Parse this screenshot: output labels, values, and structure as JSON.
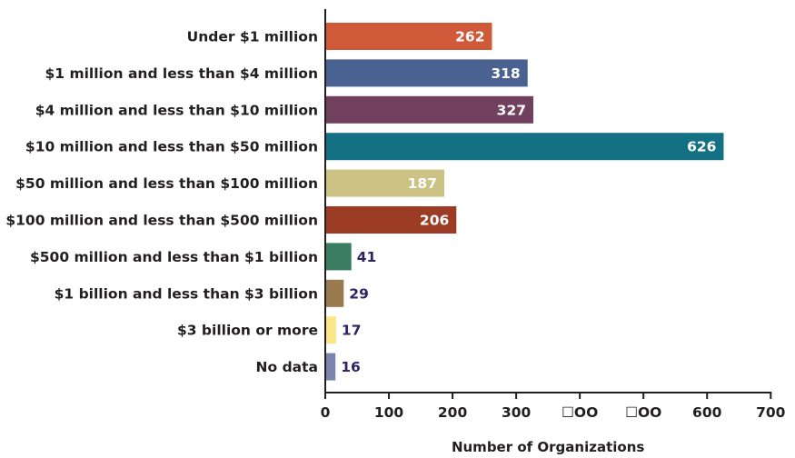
{
  "chart_data": {
    "type": "bar",
    "orientation": "horizontal",
    "categories": [
      "Under $1 million",
      "$1 million and less than $4 million",
      "$4 million and less than $10 million",
      "$10 million and less than $50 million",
      "$50 million and less than $100 million",
      "$100 million and less than $500 million",
      "$500 million and less than $1 billion",
      "$1 billion and less than $3 billion",
      "$3 billion or more",
      "No data"
    ],
    "values": [
      262,
      318,
      327,
      626,
      187,
      206,
      41,
      29,
      17,
      16
    ],
    "colors": [
      "#d0593a",
      "#4a6292",
      "#71405f",
      "#147184",
      "#cbc283",
      "#9d3c24",
      "#3a7d63",
      "#9a7b4f",
      "#fde58a",
      "#7985af"
    ],
    "label_inside_colors": "#ffffff",
    "label_outside_color": "#2f2266",
    "xlabel": "Number of Organizations",
    "ylabel": "",
    "xlim": [
      0,
      700
    ],
    "xticks": [
      0,
      100,
      200,
      300,
      400,
      500,
      600,
      700
    ],
    "xtick_labels": [
      "0",
      "100",
      "200",
      "300",
      "☐OO",
      "☐OO",
      "600",
      "700"
    ],
    "grid": false,
    "legend": "none"
  }
}
